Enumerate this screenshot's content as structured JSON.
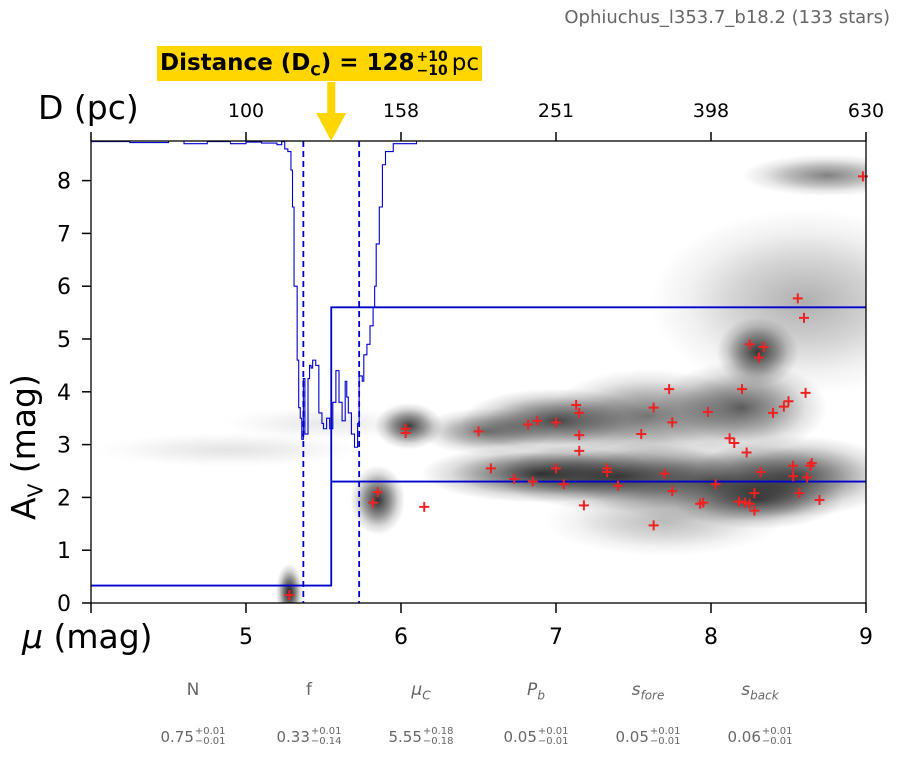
{
  "title": "Ophiuchus_l353.7_b18.2 (133 stars)",
  "distance_badge": {
    "label": "Distance (D",
    "label_sub": "C",
    "label_close": ") = 128",
    "plus": "+10",
    "minus": "−10",
    "unit": "pc"
  },
  "colors": {
    "badge": "#ffd600",
    "arrow": "#ffd600",
    "model_line": "#0000cc",
    "markers": "#ee2222",
    "meta_text": "#666666"
  },
  "chart_data": {
    "type": "scatter",
    "title": "",
    "xlabel": "μ (mag)",
    "ylabel": "AV (mag)",
    "xlabel_top": "D (pc)",
    "xlim": [
      4,
      9
    ],
    "ylim": [
      0,
      8.75
    ],
    "xticks": [
      5,
      6,
      7,
      8,
      9
    ],
    "xtick_labels": [
      "5",
      "6",
      "7",
      "8",
      "9"
    ],
    "yticks": [
      0,
      1,
      2,
      3,
      4,
      5,
      6,
      7,
      8
    ],
    "ytick_labels": [
      "0",
      "1",
      "2",
      "3",
      "4",
      "5",
      "6",
      "7",
      "8"
    ],
    "top_ticks": [
      5,
      6,
      7,
      8,
      9
    ],
    "top_tick_labels": [
      "100",
      "158",
      "251",
      "398",
      "630"
    ],
    "distance_modulus": 5.55,
    "distance_modulus_lo": 5.37,
    "distance_modulus_hi": 5.73,
    "model": {
      "foreground_av": 0.33,
      "background_av": 2.3,
      "background_upper": 5.6
    },
    "heatmap_blobs": [
      {
        "x": 5.28,
        "y": 0.2,
        "sx": 0.04,
        "sy": 0.25,
        "w": 1.0
      },
      {
        "x": 5.85,
        "y": 1.95,
        "sx": 0.08,
        "sy": 0.3,
        "w": 0.9
      },
      {
        "x": 6.05,
        "y": 3.35,
        "sx": 0.1,
        "sy": 0.2,
        "w": 0.85
      },
      {
        "x": 6.55,
        "y": 3.25,
        "sx": 0.2,
        "sy": 0.2,
        "w": 0.6
      },
      {
        "x": 7.0,
        "y": 3.45,
        "sx": 0.28,
        "sy": 0.28,
        "w": 0.8
      },
      {
        "x": 7.6,
        "y": 3.55,
        "sx": 0.3,
        "sy": 0.4,
        "w": 0.6
      },
      {
        "x": 8.2,
        "y": 3.7,
        "sx": 0.25,
        "sy": 0.4,
        "w": 0.7
      },
      {
        "x": 8.3,
        "y": 4.75,
        "sx": 0.12,
        "sy": 0.3,
        "w": 0.85
      },
      {
        "x": 6.9,
        "y": 2.45,
        "sx": 0.35,
        "sy": 0.25,
        "w": 0.85
      },
      {
        "x": 7.4,
        "y": 2.4,
        "sx": 0.35,
        "sy": 0.3,
        "w": 0.75
      },
      {
        "x": 8.0,
        "y": 2.3,
        "sx": 0.4,
        "sy": 0.35,
        "w": 0.7
      },
      {
        "x": 8.55,
        "y": 2.4,
        "sx": 0.3,
        "sy": 0.35,
        "w": 0.75
      },
      {
        "x": 8.3,
        "y": 1.95,
        "sx": 0.25,
        "sy": 0.25,
        "w": 0.7
      },
      {
        "x": 7.7,
        "y": 1.55,
        "sx": 0.35,
        "sy": 0.3,
        "w": 0.3
      },
      {
        "x": 8.75,
        "y": 8.1,
        "sx": 0.25,
        "sy": 0.18,
        "w": 0.55
      },
      {
        "x": 8.6,
        "y": 5.7,
        "sx": 0.45,
        "sy": 0.8,
        "w": 0.35
      },
      {
        "x": 4.9,
        "y": 2.9,
        "sx": 0.4,
        "sy": 0.15,
        "w": 0.12
      },
      {
        "x": 5.5,
        "y": 3.4,
        "sx": 0.3,
        "sy": 0.15,
        "w": 0.1
      }
    ],
    "stars": [
      [
        5.28,
        0.15
      ],
      [
        5.82,
        1.9
      ],
      [
        5.85,
        2.1
      ],
      [
        6.03,
        3.3
      ],
      [
        6.03,
        3.22
      ],
      [
        6.15,
        1.82
      ],
      [
        6.5,
        3.25
      ],
      [
        6.58,
        2.55
      ],
      [
        6.73,
        2.35
      ],
      [
        6.82,
        3.38
      ],
      [
        6.88,
        3.45
      ],
      [
        6.85,
        2.3
      ],
      [
        7.0,
        3.42
      ],
      [
        7.0,
        2.55
      ],
      [
        7.05,
        2.25
      ],
      [
        7.13,
        3.75
      ],
      [
        7.15,
        3.6
      ],
      [
        7.15,
        3.18
      ],
      [
        7.15,
        2.88
      ],
      [
        7.18,
        1.85
      ],
      [
        7.33,
        2.55
      ],
      [
        7.33,
        2.48
      ],
      [
        7.4,
        2.22
      ],
      [
        7.55,
        3.2
      ],
      [
        7.63,
        3.7
      ],
      [
        7.63,
        1.47
      ],
      [
        7.7,
        2.45
      ],
      [
        7.73,
        4.05
      ],
      [
        7.75,
        3.42
      ],
      [
        7.75,
        2.12
      ],
      [
        7.93,
        1.88
      ],
      [
        7.95,
        1.9
      ],
      [
        7.98,
        3.62
      ],
      [
        8.03,
        2.25
      ],
      [
        8.12,
        3.12
      ],
      [
        8.15,
        3.03
      ],
      [
        8.18,
        1.92
      ],
      [
        8.2,
        4.05
      ],
      [
        8.22,
        1.9
      ],
      [
        8.23,
        2.85
      ],
      [
        8.25,
        1.88
      ],
      [
        8.25,
        4.9
      ],
      [
        8.28,
        1.75
      ],
      [
        8.28,
        2.08
      ],
      [
        8.31,
        4.65
      ],
      [
        8.32,
        2.48
      ],
      [
        8.34,
        4.85
      ],
      [
        8.4,
        3.6
      ],
      [
        8.47,
        3.72
      ],
      [
        8.5,
        3.82
      ],
      [
        8.53,
        2.6
      ],
      [
        8.53,
        2.4
      ],
      [
        8.56,
        5.77
      ],
      [
        8.57,
        2.08
      ],
      [
        8.6,
        5.4
      ],
      [
        8.61,
        3.98
      ],
      [
        8.62,
        2.38
      ],
      [
        8.64,
        2.6
      ],
      [
        8.65,
        2.65
      ],
      [
        8.7,
        1.95
      ],
      [
        8.98,
        8.08
      ]
    ],
    "mcmc_trace": [
      [
        4.0,
        8.74
      ],
      [
        4.25,
        8.72
      ],
      [
        4.5,
        8.75
      ],
      [
        4.6,
        8.7
      ],
      [
        4.75,
        8.74
      ],
      [
        4.9,
        8.7
      ],
      [
        5.0,
        8.73
      ],
      [
        5.1,
        8.71
      ],
      [
        5.2,
        8.68
      ],
      [
        5.23,
        8.74
      ],
      [
        5.25,
        8.6
      ],
      [
        5.27,
        8.55
      ],
      [
        5.29,
        8.2
      ],
      [
        5.3,
        7.5
      ],
      [
        5.31,
        6.0
      ],
      [
        5.33,
        4.6
      ],
      [
        5.34,
        3.7
      ],
      [
        5.35,
        3.5
      ],
      [
        5.36,
        3.1
      ],
      [
        5.37,
        4.25
      ],
      [
        5.38,
        3.2
      ],
      [
        5.4,
        4.25
      ],
      [
        5.41,
        4.5
      ],
      [
        5.42,
        4.45
      ],
      [
        5.43,
        4.6
      ],
      [
        5.45,
        4.5
      ],
      [
        5.47,
        3.6
      ],
      [
        5.49,
        3.4
      ],
      [
        5.5,
        3.3
      ],
      [
        5.52,
        3.5
      ],
      [
        5.54,
        3.3
      ],
      [
        5.56,
        3.8
      ],
      [
        5.58,
        4.4
      ],
      [
        5.6,
        3.8
      ],
      [
        5.62,
        3.45
      ],
      [
        5.64,
        4.2
      ],
      [
        5.65,
        3.9
      ],
      [
        5.66,
        3.6
      ],
      [
        5.68,
        3.2
      ],
      [
        5.7,
        2.95
      ],
      [
        5.72,
        3.4
      ],
      [
        5.73,
        4.3
      ],
      [
        5.75,
        4.2
      ],
      [
        5.76,
        4.7
      ],
      [
        5.78,
        4.9
      ],
      [
        5.8,
        5.25
      ],
      [
        5.82,
        5.6
      ],
      [
        5.83,
        6.0
      ],
      [
        5.84,
        6.8
      ],
      [
        5.86,
        7.5
      ],
      [
        5.88,
        8.3
      ],
      [
        5.9,
        8.55
      ],
      [
        5.95,
        8.7
      ],
      [
        6.1,
        8.74
      ]
    ]
  },
  "parameters": [
    {
      "name": "N",
      "italic": false,
      "sub": "",
      "value": "0.75",
      "plus": "+0.01",
      "minus": "−0.01"
    },
    {
      "name": "f",
      "italic": false,
      "sub": "",
      "value": "0.33",
      "plus": "+0.01",
      "minus": "−0.14"
    },
    {
      "name": "μ",
      "italic": true,
      "sub": "C",
      "value": "5.55",
      "plus": "+0.18",
      "minus": "−0.18"
    },
    {
      "name": "P",
      "italic": true,
      "sub": "b",
      "value": "0.05",
      "plus": "+0.01",
      "minus": "−0.01"
    },
    {
      "name": "s",
      "italic": true,
      "sub": "fore",
      "value": "0.05",
      "plus": "+0.01",
      "minus": "−0.01"
    },
    {
      "name": "s",
      "italic": true,
      "sub": "back",
      "value": "0.06",
      "plus": "+0.01",
      "minus": "−0.01"
    }
  ]
}
